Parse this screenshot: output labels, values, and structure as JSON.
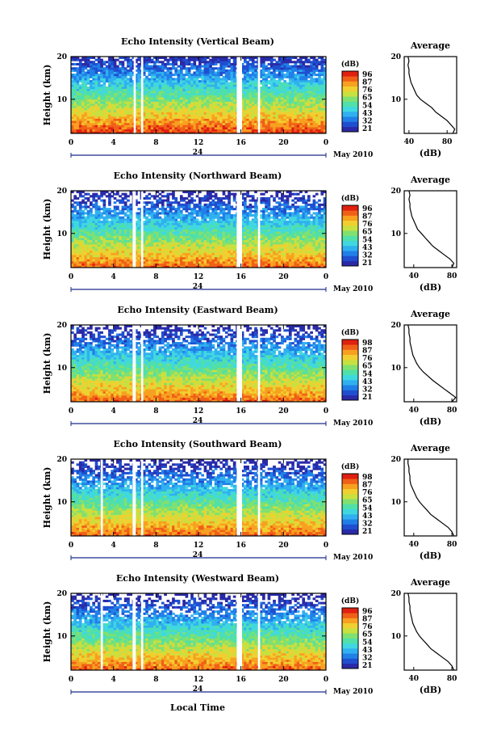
{
  "colors": {
    "scale": [
      "#2a2aa8",
      "#1f4fd0",
      "#2080e8",
      "#30b0f0",
      "#40d8e0",
      "#50e0a8",
      "#80e070",
      "#c8e040",
      "#f0d030",
      "#f8a020",
      "#f06018",
      "#e02010"
    ],
    "gap": "#ffffff",
    "axis": "#000000"
  },
  "chart_data": [
    {
      "type": "heatmap",
      "title": "Echo Intensity (Vertical Beam)",
      "ylabel": "Height (km)",
      "xticks": [
        "0",
        "4",
        "8",
        "12",
        "16",
        "20",
        "0"
      ],
      "yticks": [
        "10",
        "20"
      ],
      "ylim": [
        2,
        20
      ],
      "xlim": [
        0,
        24
      ],
      "date_center": "24",
      "date_label": "May 2010",
      "colorbar": {
        "unit": "(dB)",
        "ticks": [
          "96",
          "87",
          "76",
          "65",
          "54",
          "43",
          "32",
          "21"
        ]
      },
      "gaps_hours": [
        [
          5.9,
          6.1
        ],
        [
          6.6,
          6.8
        ],
        [
          15.6,
          16.1
        ],
        [
          17.6,
          17.8
        ]
      ],
      "profile": {
        "title": "Average",
        "xlabel": "(dB)",
        "xticks": [
          "40",
          "80"
        ],
        "yticks": [
          "10",
          "20"
        ],
        "xlim": [
          35,
          90
        ],
        "heights": [
          2,
          3,
          4,
          5,
          6,
          7,
          8,
          9,
          10,
          11,
          12,
          13,
          14,
          15,
          16,
          17,
          18,
          19,
          20
        ],
        "values": [
          86,
          88,
          84,
          80,
          74,
          68,
          64,
          58,
          52,
          48,
          46,
          44,
          42,
          41,
          40,
          40,
          39,
          40,
          39
        ]
      }
    },
    {
      "type": "heatmap",
      "title": "Echo Intensity (Northward Beam)",
      "ylabel": "Height (km)",
      "xticks": [
        "0",
        "4",
        "8",
        "12",
        "16",
        "20",
        "0"
      ],
      "yticks": [
        "10",
        "20"
      ],
      "ylim": [
        2,
        20
      ],
      "xlim": [
        0,
        24
      ],
      "date_center": "24",
      "date_label": "May 2010",
      "colorbar": {
        "unit": "(dB)",
        "ticks": [
          "96",
          "87",
          "76",
          "65",
          "54",
          "43",
          "32",
          "21"
        ]
      },
      "gaps_hours": [
        [
          5.8,
          6.1
        ],
        [
          6.6,
          6.8
        ],
        [
          15.6,
          16.1
        ],
        [
          17.6,
          17.8
        ]
      ],
      "profile": {
        "title": "Average",
        "xlabel": "(dB)",
        "xticks": [
          "40",
          "80"
        ],
        "yticks": [
          "10",
          "20"
        ],
        "xlim": [
          30,
          85
        ],
        "heights": [
          2,
          3,
          4,
          5,
          6,
          7,
          8,
          9,
          10,
          11,
          12,
          13,
          14,
          15,
          16,
          17,
          18,
          19,
          20
        ],
        "values": [
          80,
          82,
          78,
          72,
          66,
          60,
          56,
          52,
          48,
          44,
          42,
          40,
          38,
          37,
          36,
          36,
          35,
          36,
          35
        ]
      }
    },
    {
      "type": "heatmap",
      "title": "Echo Intensity (Eastward Beam)",
      "ylabel": "Height (km)",
      "xticks": [
        "0",
        "4",
        "8",
        "12",
        "16",
        "20",
        "0"
      ],
      "yticks": [
        "10",
        "20"
      ],
      "ylim": [
        2,
        20
      ],
      "xlim": [
        0,
        24
      ],
      "date_center": "24",
      "date_label": "May 2010",
      "colorbar": {
        "unit": "(dB)",
        "ticks": [
          "98",
          "87",
          "76",
          "65",
          "54",
          "43",
          "32",
          "21"
        ]
      },
      "gaps_hours": [
        [
          5.8,
          6.1
        ],
        [
          6.6,
          6.8
        ],
        [
          15.6,
          16.1
        ],
        [
          17.6,
          17.8
        ]
      ],
      "profile": {
        "title": "Average",
        "xlabel": "(dB)",
        "xticks": [
          "40",
          "80"
        ],
        "yticks": [
          "10",
          "20"
        ],
        "xlim": [
          30,
          85
        ],
        "heights": [
          2,
          3,
          4,
          5,
          6,
          7,
          8,
          9,
          10,
          11,
          12,
          13,
          14,
          15,
          16,
          17,
          18,
          19,
          20
        ],
        "values": [
          80,
          84,
          78,
          72,
          66,
          60,
          55,
          50,
          46,
          43,
          41,
          39,
          38,
          37,
          36,
          36,
          35,
          35,
          34
        ]
      }
    },
    {
      "type": "heatmap",
      "title": "Echo Intensity (Southward Beam)",
      "ylabel": "Height (km)",
      "xticks": [
        "0",
        "4",
        "8",
        "12",
        "16",
        "20",
        "0"
      ],
      "yticks": [
        "10",
        "20"
      ],
      "ylim": [
        2,
        20
      ],
      "xlim": [
        0,
        24
      ],
      "date_center": "24",
      "date_label": "May 2010",
      "colorbar": {
        "unit": "(dB)",
        "ticks": [
          "98",
          "87",
          "76",
          "65",
          "54",
          "43",
          "32",
          "21"
        ]
      },
      "gaps_hours": [
        [
          2.8,
          3.0
        ],
        [
          5.8,
          6.1
        ],
        [
          6.6,
          6.8
        ],
        [
          15.6,
          16.1
        ],
        [
          17.6,
          17.8
        ]
      ],
      "profile": {
        "title": "Average",
        "xlabel": "(dB)",
        "xticks": [
          "40",
          "80"
        ],
        "yticks": [
          "10",
          "20"
        ],
        "xlim": [
          30,
          85
        ],
        "heights": [
          2,
          3,
          4,
          5,
          6,
          7,
          8,
          9,
          10,
          11,
          12,
          13,
          14,
          15,
          16,
          17,
          18,
          19,
          20
        ],
        "values": [
          82,
          80,
          76,
          70,
          64,
          58,
          54,
          50,
          46,
          43,
          41,
          39,
          37,
          36,
          36,
          35,
          35,
          34,
          34
        ]
      }
    },
    {
      "type": "heatmap",
      "title": "Echo Intensity (Westward Beam)",
      "ylabel": "Height (km)",
      "xticks": [
        "0",
        "4",
        "8",
        "12",
        "16",
        "20",
        "0"
      ],
      "yticks": [
        "10",
        "20"
      ],
      "ylim": [
        2,
        20
      ],
      "xlim": [
        0,
        24
      ],
      "date_center": "24",
      "date_label": "May 2010",
      "colorbar": {
        "unit": "(dB)",
        "ticks": [
          "96",
          "87",
          "76",
          "65",
          "54",
          "43",
          "32",
          "21"
        ]
      },
      "gaps_hours": [
        [
          2.8,
          3.0
        ],
        [
          5.8,
          6.1
        ],
        [
          6.6,
          6.8
        ],
        [
          15.6,
          16.1
        ],
        [
          17.6,
          17.8
        ]
      ],
      "profile": {
        "title": "Average",
        "xlabel": "(dB)",
        "xticks": [
          "40",
          "80"
        ],
        "yticks": [
          "10",
          "20"
        ],
        "xlim": [
          30,
          85
        ],
        "heights": [
          2,
          3,
          4,
          5,
          6,
          7,
          8,
          9,
          10,
          11,
          12,
          13,
          14,
          15,
          16,
          17,
          18,
          19,
          20
        ],
        "values": [
          82,
          80,
          76,
          70,
          64,
          58,
          54,
          50,
          46,
          43,
          41,
          39,
          38,
          37,
          36,
          36,
          35,
          35,
          34
        ]
      }
    }
  ],
  "xlabel": "Local Time"
}
